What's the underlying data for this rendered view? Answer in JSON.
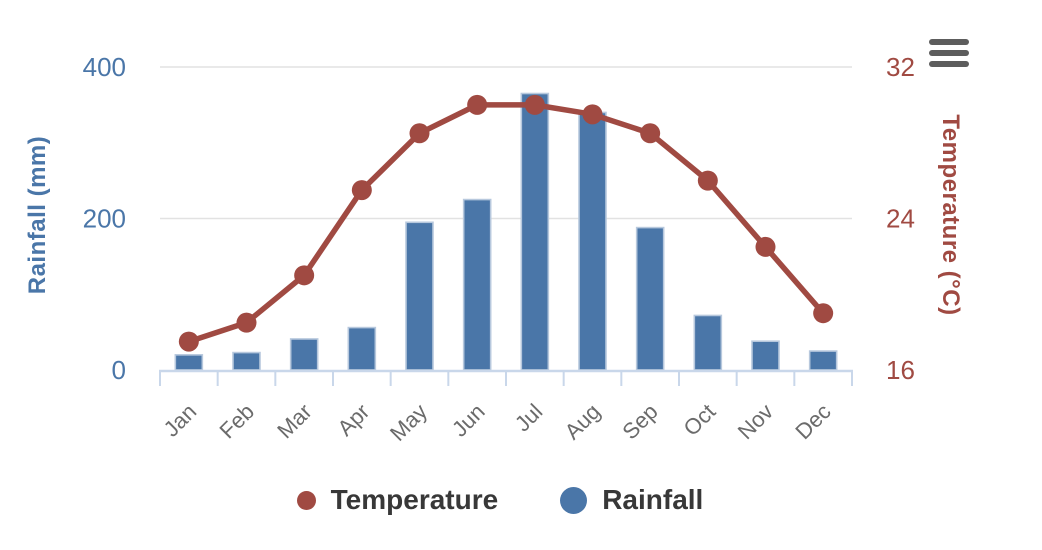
{
  "chart_data": {
    "type": "bar",
    "subtype": "bar-line-combo",
    "categories": [
      "Jan",
      "Feb",
      "Mar",
      "Apr",
      "May",
      "Jun",
      "Jul",
      "Aug",
      "Sep",
      "Oct",
      "Nov",
      "Dec"
    ],
    "series": [
      {
        "name": "Temperature",
        "type": "line",
        "axis": "right",
        "color": "#a04a42",
        "values": [
          17.5,
          18.5,
          21,
          25.5,
          28.5,
          30,
          30,
          29.5,
          28.5,
          26,
          22.5,
          19
        ]
      },
      {
        "name": "Rainfall",
        "type": "bar",
        "axis": "left",
        "color": "#4a76a8",
        "values": [
          20,
          23,
          41,
          56,
          195,
          225,
          365,
          340,
          188,
          72,
          38,
          25
        ]
      }
    ],
    "left_axis": {
      "label": "Rainfall (mm)",
      "min": 0,
      "max": 400,
      "ticks": [
        0,
        200,
        400
      ],
      "color": "#4a76a8"
    },
    "right_axis": {
      "label": "Temperature (°C)",
      "min": 16,
      "max": 32,
      "ticks": [
        16,
        24,
        32
      ],
      "color": "#a04a42"
    },
    "x_axis": {
      "label_rotation": -45,
      "label_color": "#6b6b6b"
    },
    "legend": {
      "position": "bottom",
      "items": [
        {
          "label": "Temperature",
          "color": "#a04a42"
        },
        {
          "label": "Rainfall",
          "color": "#4a76a8"
        }
      ]
    },
    "grid": "horizontal-on"
  },
  "menu": {
    "icon": "hamburger-icon",
    "color": "#5d5d5d"
  },
  "styles": {
    "background": "#ffffff",
    "grid_color": "#e2e2e2",
    "axis_line_color": "#c9d7ea",
    "bar_border_color": "#b7c8dd",
    "legend_text_color": "#383838"
  }
}
